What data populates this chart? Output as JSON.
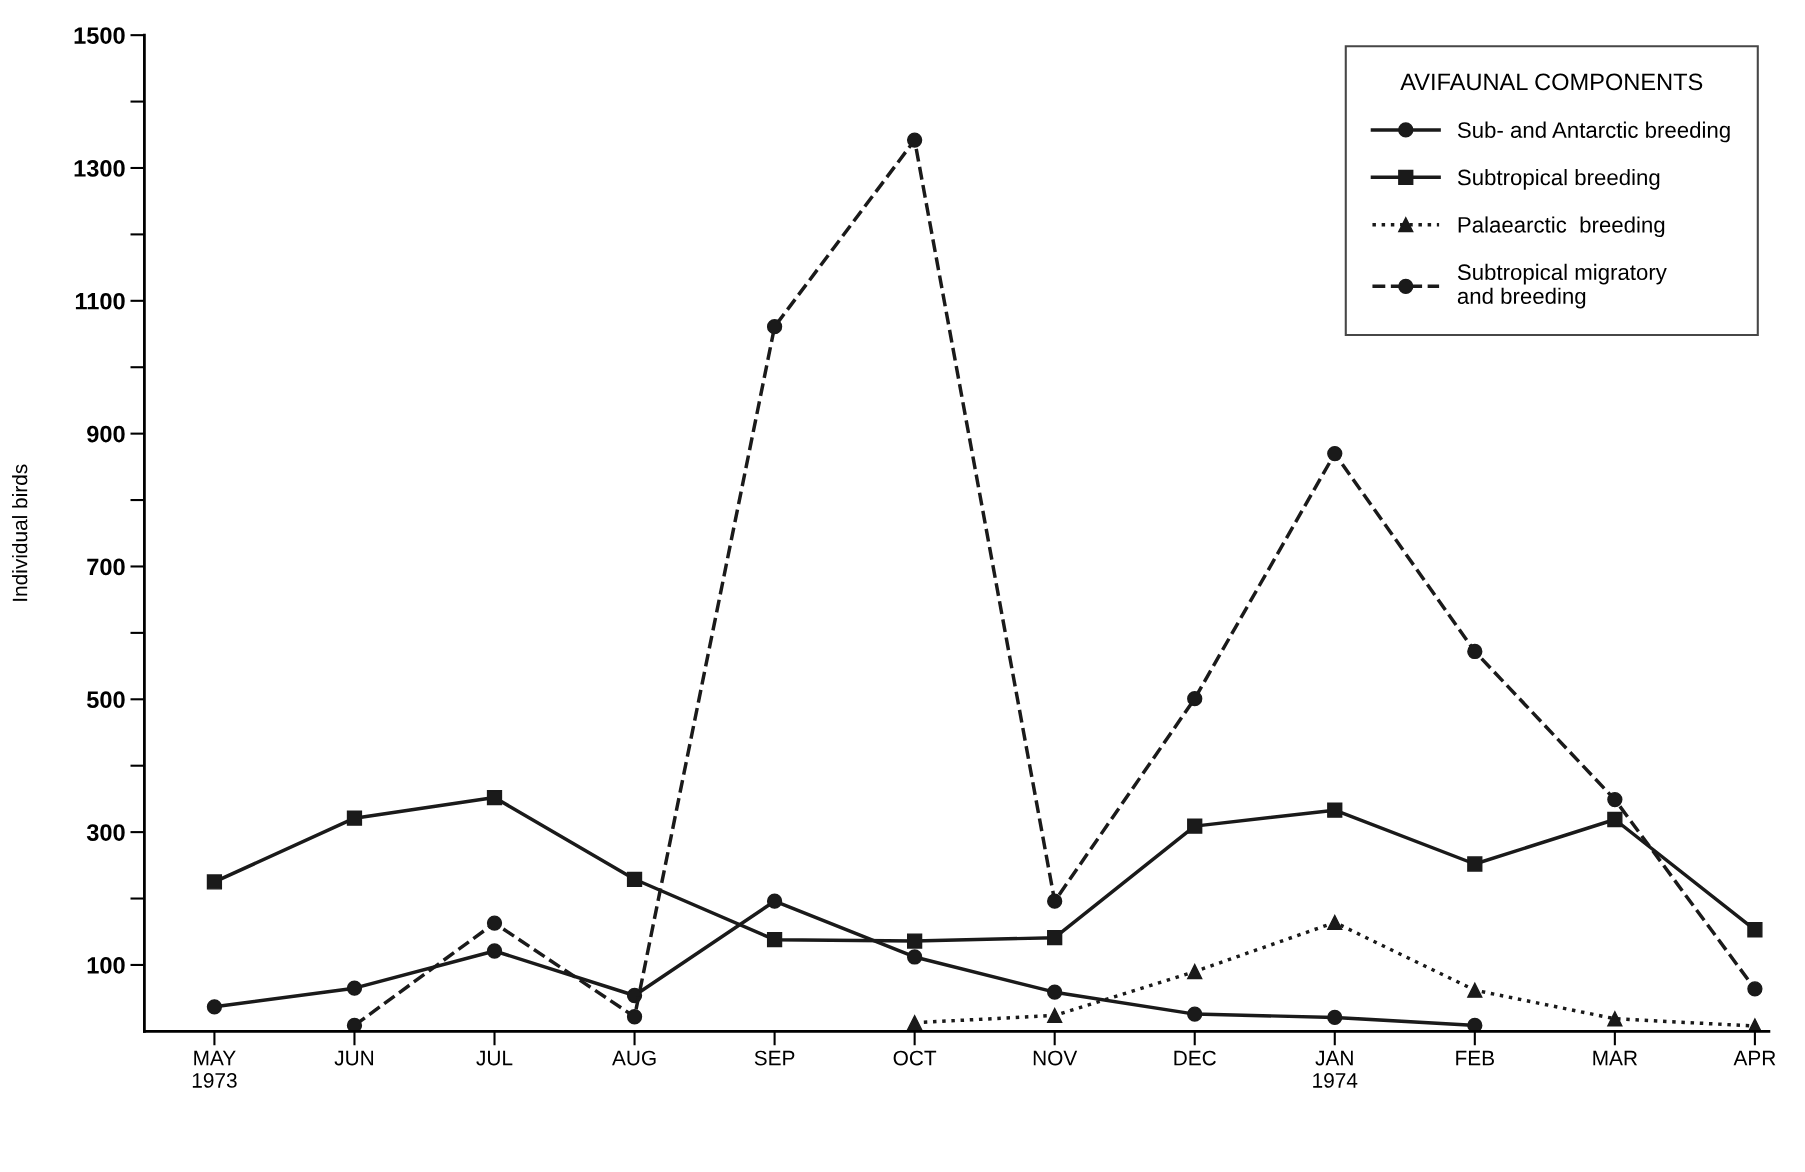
{
  "chart_data": {
    "type": "line",
    "categories": [
      "MAY\n1973",
      "JUN",
      "JUL",
      "AUG",
      "SEP",
      "OCT",
      "NOV",
      "DEC",
      "JAN\n1974",
      "FEB",
      "MAR",
      "APR"
    ],
    "ylabel": "Individual birds",
    "legend_title": "AVIFAUNAL COMPONENTS",
    "legend": "top right",
    "grid": false,
    "ylim": [
      0,
      1500
    ],
    "yticks": [
      100,
      {
        "value": 200,
        "label": null
      },
      300,
      {
        "value": 400,
        "label": null
      },
      500,
      {
        "value": 600,
        "label": null
      },
      700,
      {
        "value": 800,
        "label": null
      },
      900,
      {
        "value": 1000,
        "label": null
      },
      1100,
      {
        "value": 1200,
        "label": null
      },
      1300,
      {
        "value": 1400,
        "label": null
      },
      1500
    ],
    "series": [
      {
        "name": "Sub- and Antarctic breeding",
        "color": "#1a1a1a",
        "marker": "circle",
        "line_style": "solid",
        "values": [
          37,
          65,
          121,
          54,
          196,
          112,
          59,
          26,
          21,
          9,
          null,
          null
        ]
      },
      {
        "name": "Subtropical breeding",
        "color": "#1a1a1a",
        "marker": "square",
        "line_style": "solid",
        "values": [
          225,
          321,
          352,
          229,
          138,
          136,
          141,
          309,
          333,
          252,
          319,
          153
        ]
      },
      {
        "name": "Palaearctic  breeding",
        "color": "#1a1a1a",
        "marker": "triangle",
        "line_style": "dotted",
        "values": [
          null,
          null,
          null,
          null,
          null,
          13,
          24,
          90,
          164,
          62,
          19,
          8
        ]
      },
      {
        "name": "Subtropical migratory\nand breeding",
        "color": "#1a1a1a",
        "marker": "circle",
        "line_style": "dashed",
        "values": [
          null,
          9,
          163,
          22,
          1061,
          1342,
          196,
          501,
          870,
          572,
          349,
          64
        ]
      }
    ]
  }
}
